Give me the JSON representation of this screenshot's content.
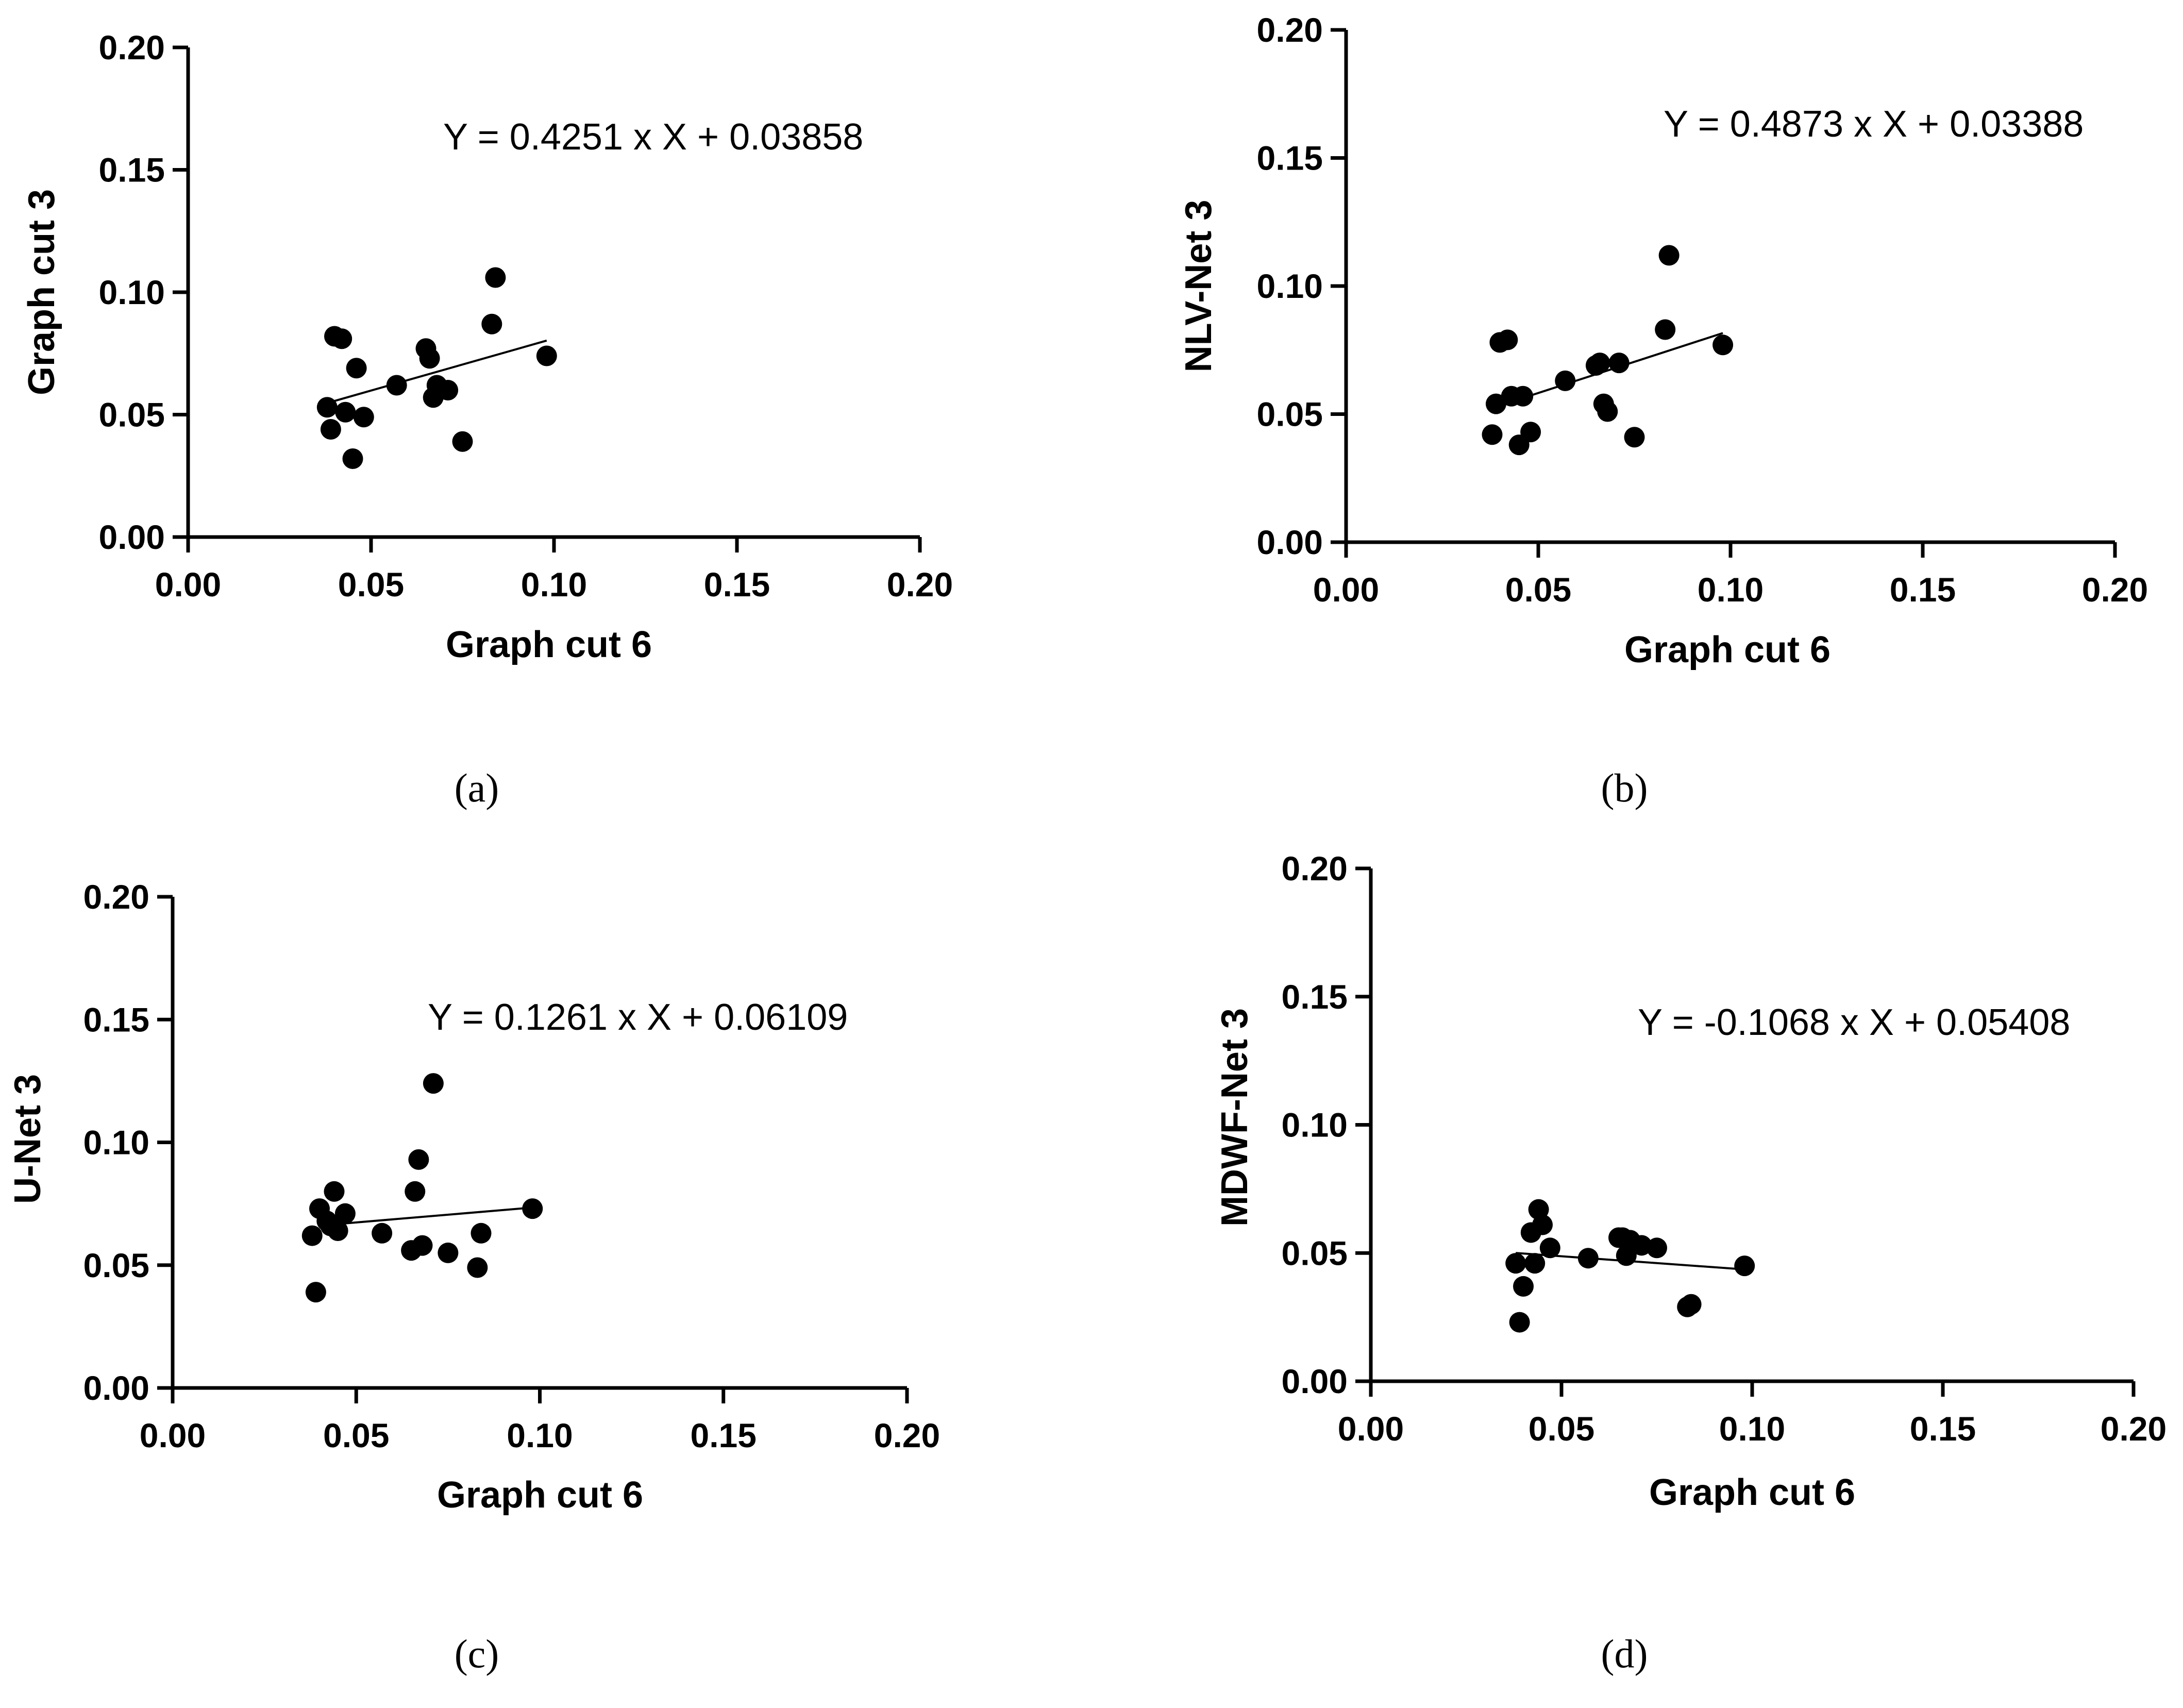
{
  "chart_data": [
    {
      "type": "scatter",
      "panel": "(a)",
      "xlabel": "Graph cut 6",
      "ylabel": "Graph cut 3",
      "equation": "Y = 0.4251 x X + 0.03858",
      "xlim": [
        0,
        0.2
      ],
      "ylim": [
        0,
        0.2
      ],
      "xticks": [
        "0.00",
        "0.05",
        "0.10",
        "0.15",
        "0.20"
      ],
      "yticks": [
        "0.00",
        "0.05",
        "0.10",
        "0.15",
        "0.20"
      ],
      "fit": {
        "slope": 0.4251,
        "intercept": 0.03858,
        "x_range": [
          0.038,
          0.098
        ]
      },
      "points": [
        {
          "x": 0.038,
          "y": 0.053
        },
        {
          "x": 0.039,
          "y": 0.044
        },
        {
          "x": 0.04,
          "y": 0.082
        },
        {
          "x": 0.042,
          "y": 0.081
        },
        {
          "x": 0.043,
          "y": 0.051
        },
        {
          "x": 0.045,
          "y": 0.032
        },
        {
          "x": 0.046,
          "y": 0.069
        },
        {
          "x": 0.048,
          "y": 0.049
        },
        {
          "x": 0.057,
          "y": 0.062
        },
        {
          "x": 0.065,
          "y": 0.077
        },
        {
          "x": 0.066,
          "y": 0.073
        },
        {
          "x": 0.067,
          "y": 0.057
        },
        {
          "x": 0.068,
          "y": 0.062
        },
        {
          "x": 0.071,
          "y": 0.06
        },
        {
          "x": 0.075,
          "y": 0.039
        },
        {
          "x": 0.083,
          "y": 0.087
        },
        {
          "x": 0.084,
          "y": 0.106
        },
        {
          "x": 0.098,
          "y": 0.074
        }
      ]
    },
    {
      "type": "scatter",
      "panel": "(b)",
      "xlabel": "Graph cut 6",
      "ylabel": "NLV-Net 3",
      "equation": "Y = 0.4873 x X + 0.03388",
      "xlim": [
        0,
        0.2
      ],
      "ylim": [
        0,
        0.2
      ],
      "xticks": [
        "0.00",
        "0.05",
        "0.10",
        "0.15",
        "0.20"
      ],
      "yticks": [
        "0.00",
        "0.05",
        "0.10",
        "0.15",
        "0.20"
      ],
      "fit": {
        "slope": 0.4873,
        "intercept": 0.03388,
        "x_range": [
          0.038,
          0.098
        ]
      },
      "points": [
        {
          "x": 0.038,
          "y": 0.042
        },
        {
          "x": 0.039,
          "y": 0.054
        },
        {
          "x": 0.04,
          "y": 0.078
        },
        {
          "x": 0.042,
          "y": 0.079
        },
        {
          "x": 0.043,
          "y": 0.057
        },
        {
          "x": 0.045,
          "y": 0.038
        },
        {
          "x": 0.046,
          "y": 0.057
        },
        {
          "x": 0.048,
          "y": 0.043
        },
        {
          "x": 0.057,
          "y": 0.063
        },
        {
          "x": 0.065,
          "y": 0.069
        },
        {
          "x": 0.066,
          "y": 0.07
        },
        {
          "x": 0.067,
          "y": 0.054
        },
        {
          "x": 0.068,
          "y": 0.051
        },
        {
          "x": 0.071,
          "y": 0.07
        },
        {
          "x": 0.075,
          "y": 0.041
        },
        {
          "x": 0.083,
          "y": 0.083
        },
        {
          "x": 0.084,
          "y": 0.112
        },
        {
          "x": 0.098,
          "y": 0.077
        }
      ]
    },
    {
      "type": "scatter",
      "panel": "(c)",
      "xlabel": "Graph cut 6",
      "ylabel": "U-Net 3",
      "equation": "Y = 0.1261 x X + 0.06109",
      "xlim": [
        0,
        0.2
      ],
      "ylim": [
        0,
        0.2
      ],
      "xticks": [
        "0.00",
        "0.05",
        "0.10",
        "0.15",
        "0.20"
      ],
      "yticks": [
        "0.00",
        "0.05",
        "0.10",
        "0.15",
        "0.20"
      ],
      "fit": {
        "slope": 0.1261,
        "intercept": 0.06109,
        "x_range": [
          0.04,
          0.098
        ]
      },
      "points": [
        {
          "x": 0.038,
          "y": 0.062
        },
        {
          "x": 0.039,
          "y": 0.039
        },
        {
          "x": 0.04,
          "y": 0.073
        },
        {
          "x": 0.042,
          "y": 0.068
        },
        {
          "x": 0.043,
          "y": 0.066
        },
        {
          "x": 0.044,
          "y": 0.08
        },
        {
          "x": 0.045,
          "y": 0.064
        },
        {
          "x": 0.047,
          "y": 0.071
        },
        {
          "x": 0.057,
          "y": 0.063
        },
        {
          "x": 0.065,
          "y": 0.056
        },
        {
          "x": 0.066,
          "y": 0.08
        },
        {
          "x": 0.067,
          "y": 0.093
        },
        {
          "x": 0.068,
          "y": 0.058
        },
        {
          "x": 0.071,
          "y": 0.124
        },
        {
          "x": 0.075,
          "y": 0.055
        },
        {
          "x": 0.083,
          "y": 0.049
        },
        {
          "x": 0.084,
          "y": 0.063
        },
        {
          "x": 0.098,
          "y": 0.073
        }
      ]
    },
    {
      "type": "scatter",
      "panel": "(d)",
      "xlabel": "Graph cut 6",
      "ylabel": "MDWF-Net 3",
      "equation": "Y = -0.1068 x X + 0.05408",
      "xlim": [
        0,
        0.2
      ],
      "ylim": [
        0,
        0.2
      ],
      "xticks": [
        "0.00",
        "0.05",
        "0.10",
        "0.15",
        "0.20"
      ],
      "yticks": [
        "0.00",
        "0.05",
        "0.10",
        "0.15",
        "0.20"
      ],
      "fit": {
        "slope": -0.1068,
        "intercept": 0.05408,
        "x_range": [
          0.038,
          0.098
        ]
      },
      "points": [
        {
          "x": 0.038,
          "y": 0.046
        },
        {
          "x": 0.039,
          "y": 0.023
        },
        {
          "x": 0.04,
          "y": 0.037
        },
        {
          "x": 0.042,
          "y": 0.058
        },
        {
          "x": 0.043,
          "y": 0.046
        },
        {
          "x": 0.044,
          "y": 0.067
        },
        {
          "x": 0.045,
          "y": 0.061
        },
        {
          "x": 0.047,
          "y": 0.052
        },
        {
          "x": 0.057,
          "y": 0.048
        },
        {
          "x": 0.065,
          "y": 0.056
        },
        {
          "x": 0.066,
          "y": 0.056
        },
        {
          "x": 0.067,
          "y": 0.049
        },
        {
          "x": 0.068,
          "y": 0.055
        },
        {
          "x": 0.071,
          "y": 0.053
        },
        {
          "x": 0.075,
          "y": 0.052
        },
        {
          "x": 0.083,
          "y": 0.029
        },
        {
          "x": 0.084,
          "y": 0.03
        },
        {
          "x": 0.098,
          "y": 0.045
        }
      ]
    }
  ]
}
